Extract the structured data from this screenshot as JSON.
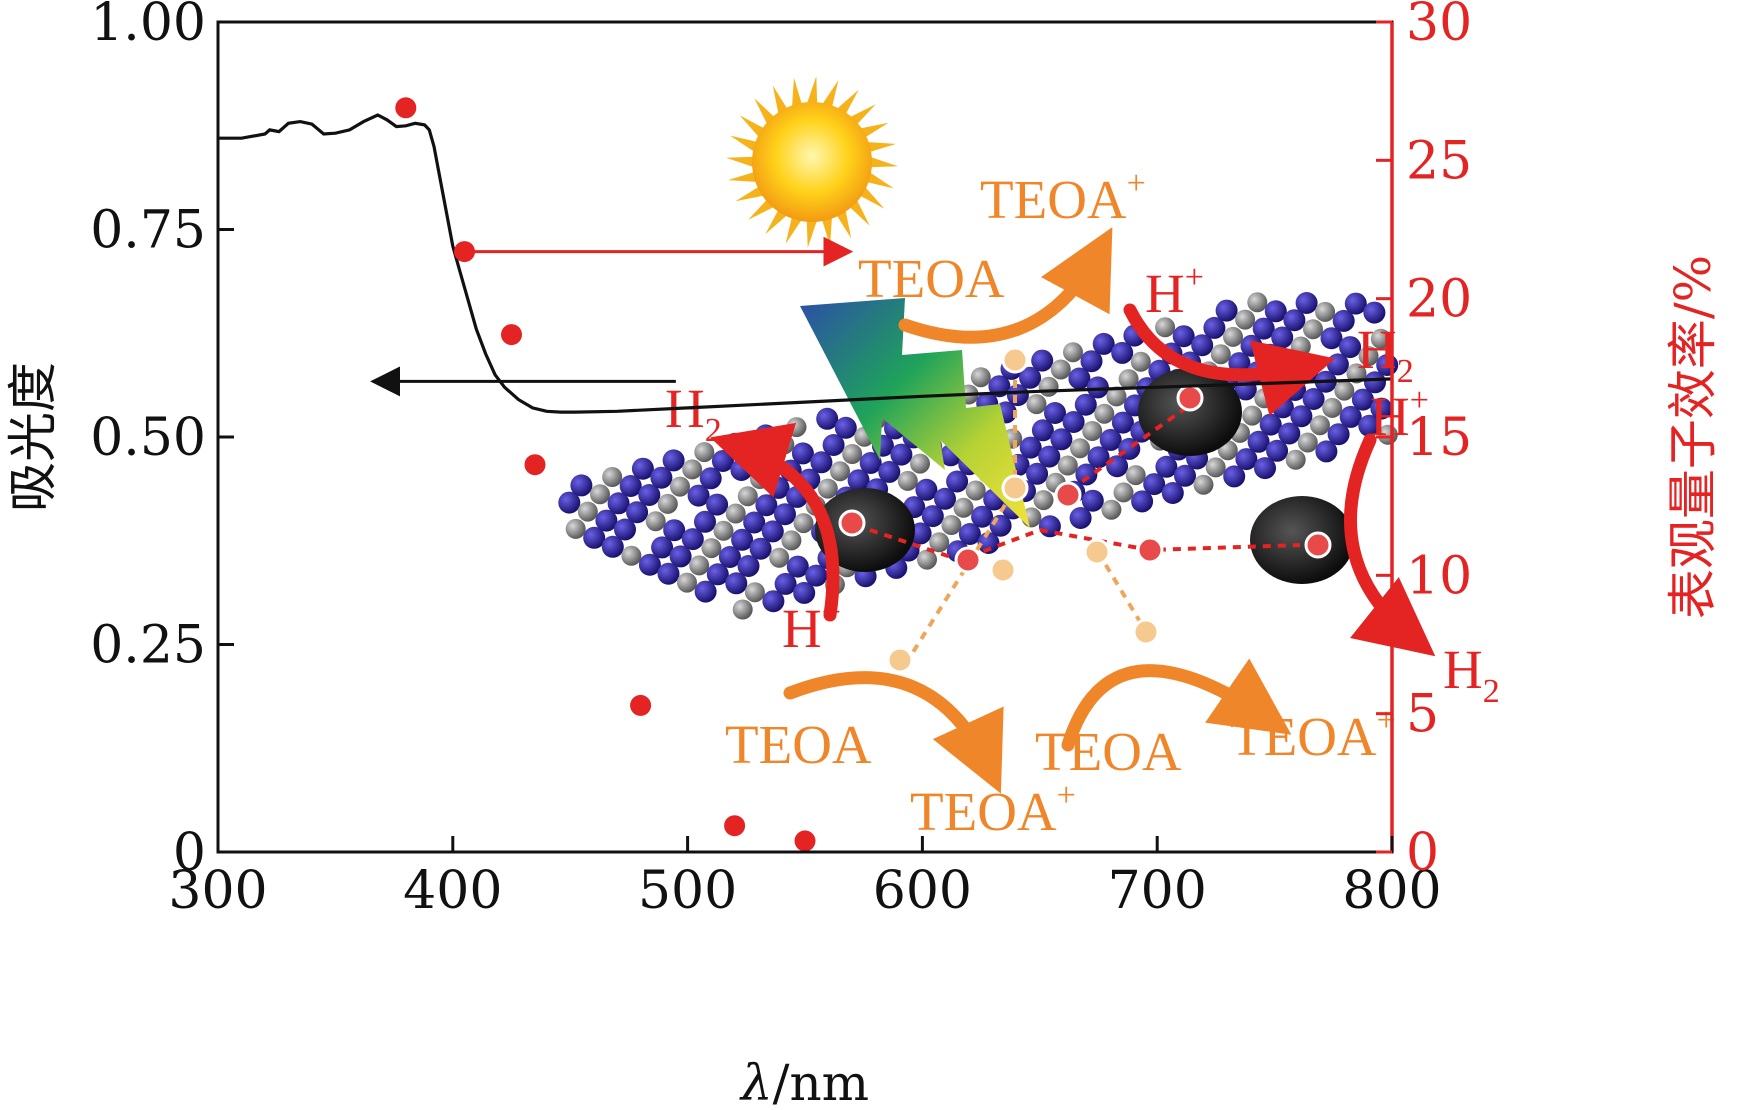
{
  "chart_data": {
    "type": "line+scatter",
    "colors": {
      "absorbance": "#111111",
      "aqe": "#e42323",
      "teoa": "#f0862a",
      "h": "#e42323",
      "nitrogen_atom": "#2a1f9a",
      "carbon_atom": "#707070",
      "cocatalyst": "#1a1a1a"
    },
    "x_axis": {
      "label_symbol": "λ",
      "label_unit": "/nm",
      "range": [
        300,
        800
      ],
      "ticks": [
        300,
        400,
        500,
        600,
        700,
        800
      ],
      "tick_labels": [
        "300",
        "400",
        "500",
        "600",
        "700",
        "800"
      ]
    },
    "y_left": {
      "label": "吸光度",
      "range": [
        0,
        1.0
      ],
      "ticks": [
        0,
        0.25,
        0.5,
        0.75,
        1.0
      ],
      "tick_labels": [
        "0",
        "0.25",
        "0.50",
        "0.75",
        "1.00"
      ]
    },
    "y_right": {
      "label": "表观量子效率/%",
      "range": [
        0,
        30
      ],
      "ticks": [
        0,
        5,
        10,
        15,
        20,
        25,
        30
      ],
      "tick_labels": [
        "0",
        "5",
        "10",
        "15",
        "20",
        "25",
        "30"
      ]
    },
    "series": [
      {
        "name": "absorbance",
        "axis": "left",
        "kind": "line",
        "x": [
          300,
          310,
          320,
          322,
          326,
          330,
          335,
          340,
          345,
          350,
          356,
          362,
          368,
          372,
          376,
          380,
          384,
          388,
          390,
          392,
          394,
          396,
          398,
          400,
          403,
          406,
          410,
          414,
          418,
          422,
          428,
          434,
          440,
          446,
          452,
          470,
          500,
          550,
          600,
          650,
          700,
          750,
          800
        ],
        "y": [
          0.86,
          0.86,
          0.865,
          0.87,
          0.868,
          0.878,
          0.88,
          0.877,
          0.865,
          0.866,
          0.87,
          0.88,
          0.888,
          0.882,
          0.874,
          0.875,
          0.878,
          0.876,
          0.87,
          0.85,
          0.82,
          0.79,
          0.76,
          0.73,
          0.7,
          0.67,
          0.63,
          0.6,
          0.575,
          0.56,
          0.545,
          0.535,
          0.531,
          0.53,
          0.53,
          0.531,
          0.535,
          0.542,
          0.549,
          0.555,
          0.56,
          0.565,
          0.57
        ]
      },
      {
        "name": "apparent quantum efficiency",
        "axis": "right",
        "kind": "scatter",
        "x": [
          380,
          405,
          425,
          435,
          480,
          520,
          550
        ],
        "y": [
          26.9,
          21.7,
          18.7,
          14.0,
          5.3,
          0.95,
          0.4
        ]
      }
    ],
    "axis_arrows": [
      {
        "points_to": "left",
        "attached_to": "absorbance"
      },
      {
        "points_to": "right",
        "attached_to": "apparent quantum efficiency"
      }
    ],
    "annotations": {
      "teoa": "TEOA",
      "teoa_plus": "TEOA",
      "plus_sign": "+",
      "h": "H",
      "h2_subscript": "2"
    }
  }
}
